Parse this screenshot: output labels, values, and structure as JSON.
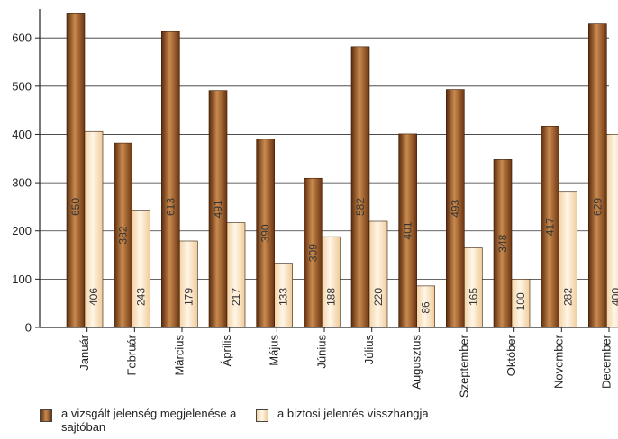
{
  "chart_data": {
    "type": "bar",
    "categories": [
      "Január",
      "Február",
      "Március",
      "Április",
      "Május",
      "Június",
      "Július",
      "Augusztus",
      "Szeptember",
      "Október",
      "November",
      "December"
    ],
    "series": [
      {
        "name": "a vizsgált jelenség megjelenése a sajtóban",
        "values": [
          650,
          382,
          613,
          491,
          390,
          309,
          582,
          401,
          493,
          348,
          417,
          629
        ],
        "color": "#8b4a1c"
      },
      {
        "name": "a biztosi jelentés visszhangja",
        "values": [
          406,
          243,
          179,
          217,
          133,
          188,
          220,
          86,
          165,
          100,
          282,
          400
        ],
        "color": "#f6dcb4"
      }
    ],
    "yticks": [
      0,
      100,
      200,
      300,
      400,
      500,
      600
    ],
    "ylim": [
      0,
      660
    ],
    "grid": true,
    "legend_position": "bottom-left"
  }
}
